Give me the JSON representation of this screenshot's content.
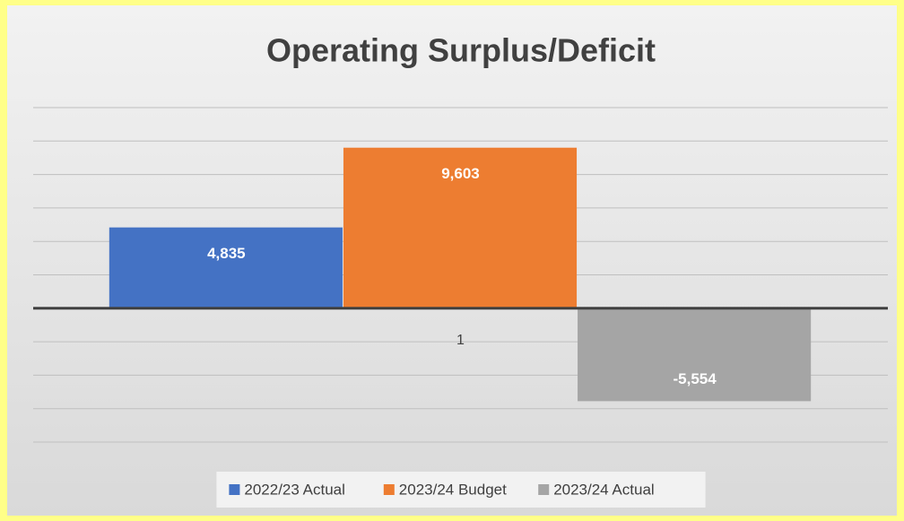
{
  "chart_data": {
    "type": "bar",
    "title": "Operating Surplus/Deficit",
    "categories": [
      "1"
    ],
    "series": [
      {
        "name": "2022/23 Actual",
        "color": "#4472c4",
        "values": [
          4835
        ],
        "value_labels": [
          "4,835"
        ]
      },
      {
        "name": "2023/24 Budget",
        "color": "#ed7d31",
        "values": [
          9603
        ],
        "value_labels": [
          "9,603"
        ]
      },
      {
        "name": "2023/24 Actual",
        "color": "#a5a5a5",
        "values": [
          -5554
        ],
        "value_labels": [
          "-5,554"
        ]
      }
    ],
    "ylim": [
      -8000,
      12000
    ],
    "yticks": [
      -8000,
      -6000,
      -4000,
      -2000,
      0,
      2000,
      4000,
      6000,
      8000,
      10000,
      12000
    ],
    "grid": true,
    "legend": "bottom"
  }
}
